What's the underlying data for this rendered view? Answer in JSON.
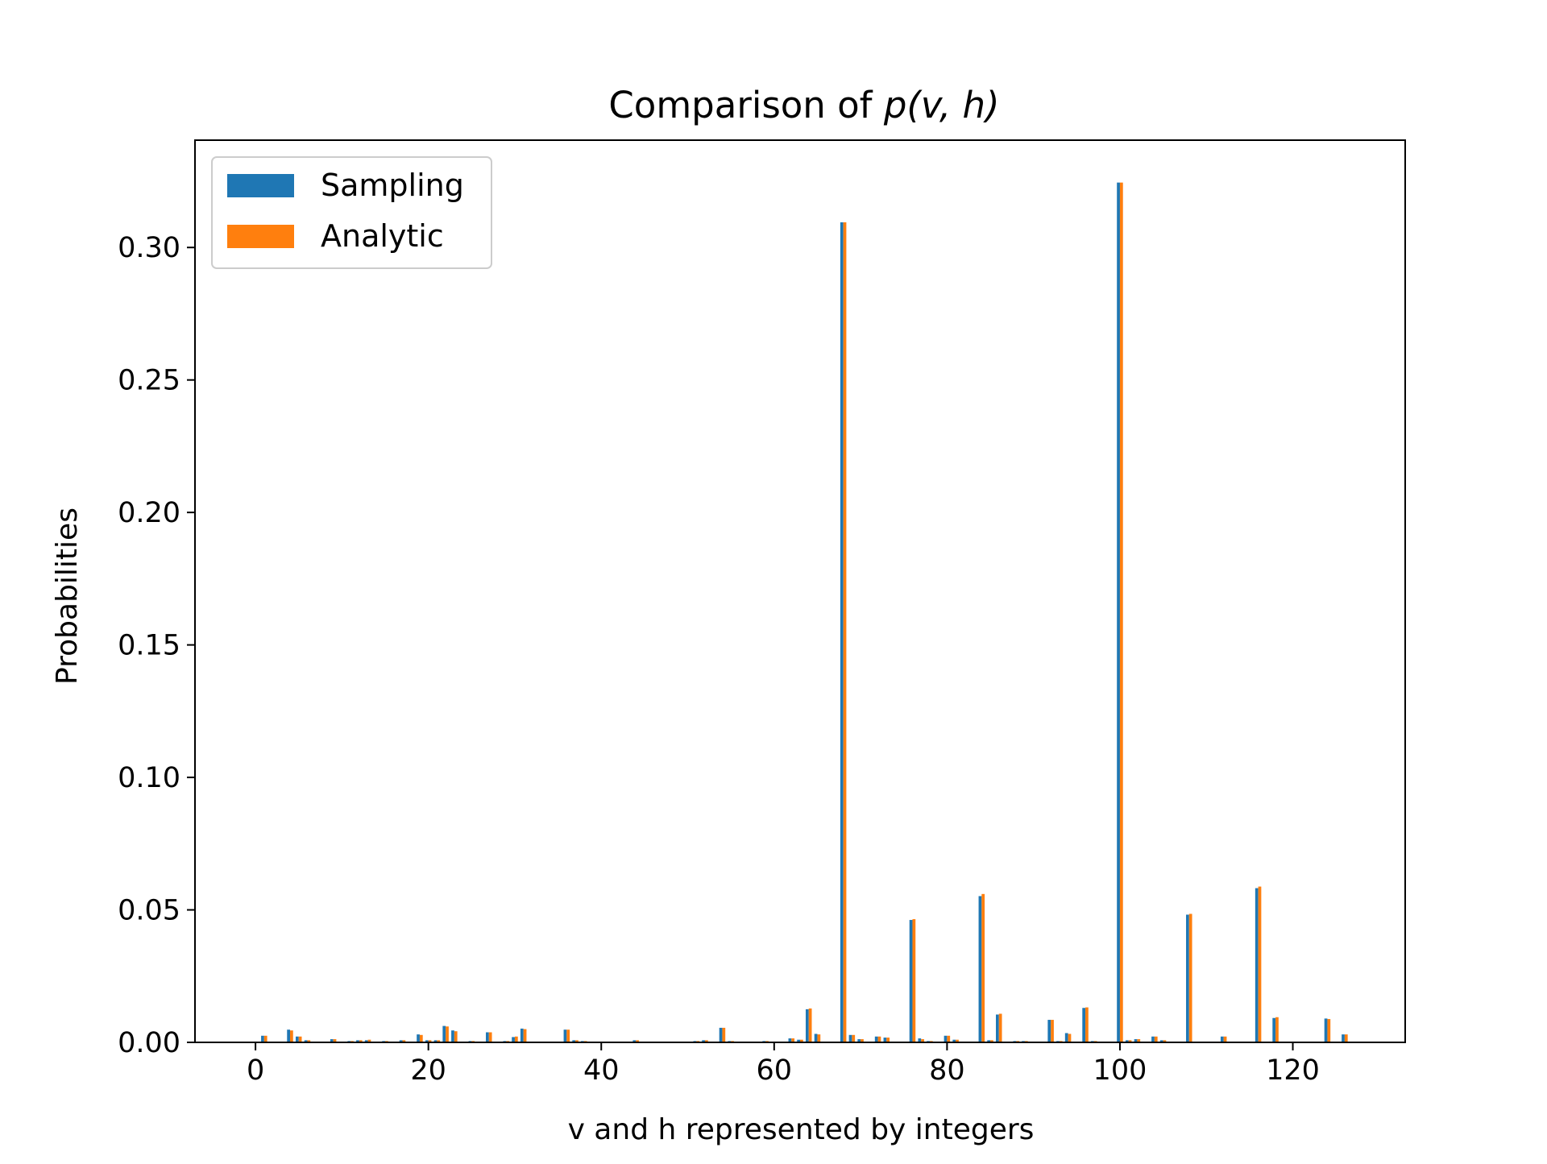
{
  "colors": {
    "sampling": "#1f77b4",
    "analytic": "#ff7f0e",
    "axes": "#000000",
    "legend_border": "#cccccc",
    "background": "#ffffff"
  },
  "chart_data": {
    "type": "bar",
    "title_prefix": "Comparison of ",
    "title_math": "p(v, h)",
    "xlabel": "v and h represented by integers",
    "ylabel": "Probabilities",
    "xlim": [
      -7,
      133
    ],
    "ylim": [
      0,
      0.3405
    ],
    "xticks": [
      0,
      20,
      40,
      60,
      80,
      100,
      120
    ],
    "yticks": [
      0.0,
      0.05,
      0.1,
      0.15,
      0.2,
      0.25,
      0.3
    ],
    "ytick_labels": [
      "0.00",
      "0.05",
      "0.10",
      "0.15",
      "0.20",
      "0.25",
      "0.30"
    ],
    "grid": false,
    "legend_position": "upper-left",
    "bar_width": 0.35,
    "series": [
      {
        "name": "Sampling",
        "x": [
          1,
          4,
          5,
          6,
          9,
          11,
          12,
          13,
          15,
          17,
          19,
          20,
          21,
          22,
          23,
          25,
          27,
          29,
          30,
          31,
          33,
          36,
          37,
          38,
          44,
          51,
          52,
          54,
          55,
          59,
          62,
          63,
          64,
          65,
          68,
          69,
          70,
          72,
          73,
          76,
          77,
          78,
          80,
          81,
          84,
          85,
          86,
          88,
          89,
          92,
          93,
          94,
          96,
          97,
          100,
          101,
          102,
          104,
          105,
          108,
          110,
          112,
          116,
          118,
          124,
          126
        ],
        "values": [
          0.0025,
          0.0048,
          0.0022,
          0.0008,
          0.0012,
          0.0005,
          0.0008,
          0.0008,
          0.0005,
          0.0008,
          0.003,
          0.0008,
          0.0008,
          0.0062,
          0.0045,
          0.0005,
          0.0038,
          0.0005,
          0.002,
          0.0052,
          0.0003,
          0.0048,
          0.0008,
          0.0005,
          0.0008,
          0.0005,
          0.0008,
          0.0055,
          0.0005,
          0.0005,
          0.0015,
          0.001,
          0.0125,
          0.0032,
          0.3095,
          0.0028,
          0.0012,
          0.0022,
          0.0018,
          0.0462,
          0.0015,
          0.0005,
          0.0025,
          0.001,
          0.0552,
          0.0008,
          0.0105,
          0.0005,
          0.0005,
          0.0085,
          0.0005,
          0.0035,
          0.013,
          0.0005,
          0.3245,
          0.0008,
          0.0012,
          0.0022,
          0.0008,
          0.0482,
          0.0003,
          0.0022,
          0.0582,
          0.0092,
          0.009,
          0.003
        ]
      },
      {
        "name": "Analytic",
        "x": [
          1,
          4,
          5,
          6,
          9,
          11,
          12,
          13,
          15,
          17,
          19,
          20,
          21,
          22,
          23,
          25,
          27,
          29,
          30,
          31,
          33,
          36,
          37,
          38,
          44,
          51,
          52,
          54,
          55,
          59,
          62,
          63,
          64,
          65,
          68,
          69,
          70,
          72,
          73,
          76,
          77,
          78,
          80,
          81,
          84,
          85,
          86,
          88,
          89,
          92,
          93,
          94,
          96,
          97,
          100,
          101,
          102,
          104,
          105,
          108,
          110,
          112,
          116,
          118,
          124,
          126
        ],
        "values": [
          0.0025,
          0.0045,
          0.0022,
          0.0008,
          0.0012,
          0.0005,
          0.0008,
          0.001,
          0.0005,
          0.0008,
          0.0028,
          0.0008,
          0.0008,
          0.006,
          0.0042,
          0.0005,
          0.0038,
          0.0005,
          0.0022,
          0.005,
          0.0003,
          0.0048,
          0.0008,
          0.0005,
          0.0008,
          0.0005,
          0.0008,
          0.0055,
          0.0005,
          0.0005,
          0.0015,
          0.001,
          0.0128,
          0.003,
          0.3095,
          0.0028,
          0.0012,
          0.0022,
          0.0018,
          0.0465,
          0.0012,
          0.0005,
          0.0025,
          0.001,
          0.056,
          0.0008,
          0.0108,
          0.0005,
          0.0005,
          0.0085,
          0.0005,
          0.0032,
          0.0132,
          0.0005,
          0.3245,
          0.0008,
          0.0012,
          0.0022,
          0.0008,
          0.0485,
          0.0003,
          0.0022,
          0.0588,
          0.0095,
          0.0088,
          0.003
        ]
      }
    ]
  }
}
